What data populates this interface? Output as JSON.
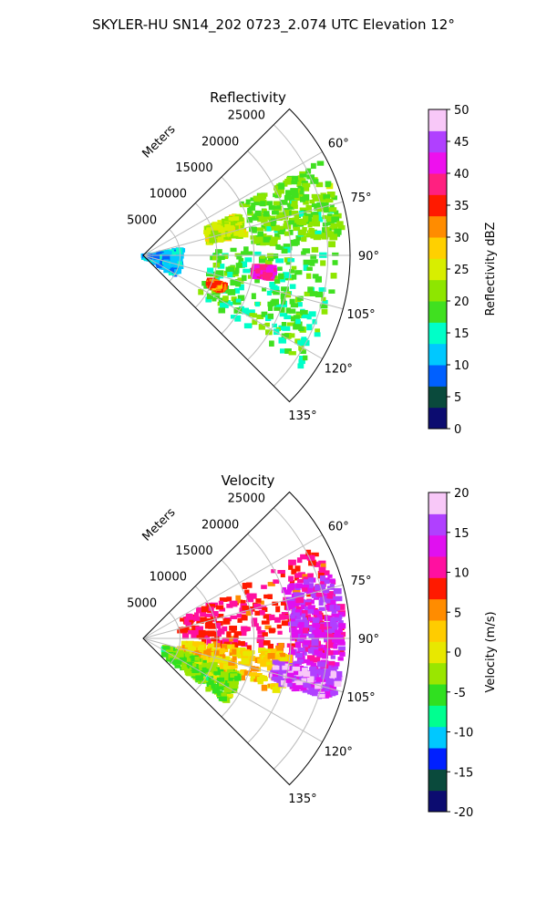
{
  "figure_title": "SKYLER-HU  SN14_202  0723_2.074 UTC Elevation 12°",
  "chart_data": [
    {
      "type": "polar-sector",
      "title": "Reflectivity",
      "radial_label": "Meters",
      "radial_ticks": [
        5000,
        10000,
        15000,
        20000,
        25000
      ],
      "azimuth_ticks": [
        "60°",
        "75°",
        "90°",
        "105°",
        "120°",
        "135°"
      ],
      "azimuth_range_deg": [
        45,
        135
      ],
      "range_max_m": 28000,
      "grid": true,
      "colorbar": {
        "label": "Reflectivity dBZ",
        "range": [
          0,
          50
        ],
        "ticks": [
          0,
          5,
          10,
          15,
          20,
          25,
          30,
          35,
          40,
          45,
          50
        ]
      },
      "palette": [
        "#0c0c70",
        "#0a4a3c",
        "#0060ff",
        "#00c8ff",
        "#00ffc8",
        "#40e020",
        "#8ee600",
        "#d8ee00",
        "#ffd000",
        "#ff8c00",
        "#ff1a00",
        "#ff2080",
        "#ee10ee",
        "#b040ff",
        "#f8c8f8"
      ],
      "echo_regions": [
        {
          "az": [
            62,
            85
          ],
          "r": [
            15000,
            27000
          ],
          "dbz": 20
        },
        {
          "az": [
            86,
            125
          ],
          "r": [
            9000,
            26000
          ],
          "dbz": 18
        },
        {
          "az": [
            66,
            78
          ],
          "r": [
            9000,
            14000
          ],
          "dbz": 24
        },
        {
          "az": [
            95,
            100
          ],
          "r": [
            15000,
            17500
          ],
          "dbz": 40
        },
        {
          "az": [
            110,
            114
          ],
          "r": [
            9500,
            11500
          ],
          "dbz": 33
        },
        {
          "az": [
            80,
            120
          ],
          "r": [
            0,
            5000
          ],
          "dbz": 12
        }
      ]
    },
    {
      "type": "polar-sector",
      "title": "Velocity",
      "radial_label": "Meters",
      "radial_ticks": [
        5000,
        10000,
        15000,
        20000,
        25000
      ],
      "azimuth_ticks": [
        "60°",
        "75°",
        "90°",
        "105°",
        "120°",
        "135°"
      ],
      "azimuth_range_deg": [
        45,
        135
      ],
      "range_max_m": 28000,
      "grid": true,
      "colorbar": {
        "label": "Velocity (m/s)",
        "range": [
          -20,
          20
        ],
        "ticks": [
          -20,
          -15,
          -10,
          -5,
          0,
          5,
          10,
          15,
          20
        ]
      },
      "palette": [
        "#0c0c70",
        "#0a4a3c",
        "#0020ff",
        "#00c8ff",
        "#00ff90",
        "#30e020",
        "#9ae600",
        "#e8e800",
        "#ffcc00",
        "#ff8c00",
        "#ff1a00",
        "#ff10a0",
        "#e010f0",
        "#b040ff",
        "#f8c8f8"
      ],
      "echo_regions": [
        {
          "az": [
            62,
            95
          ],
          "r": [
            5000,
            27000
          ],
          "v": 9
        },
        {
          "az": [
            70,
            100
          ],
          "r": [
            20000,
            27000
          ],
          "v": 14
        },
        {
          "az": [
            95,
            112
          ],
          "r": [
            5000,
            20000
          ],
          "v": 2
        },
        {
          "az": [
            100,
            108
          ],
          "r": [
            18000,
            27000
          ],
          "v": 16
        },
        {
          "az": [
            110,
            128
          ],
          "r": [
            3000,
            14000
          ],
          "v": -4
        }
      ]
    }
  ]
}
